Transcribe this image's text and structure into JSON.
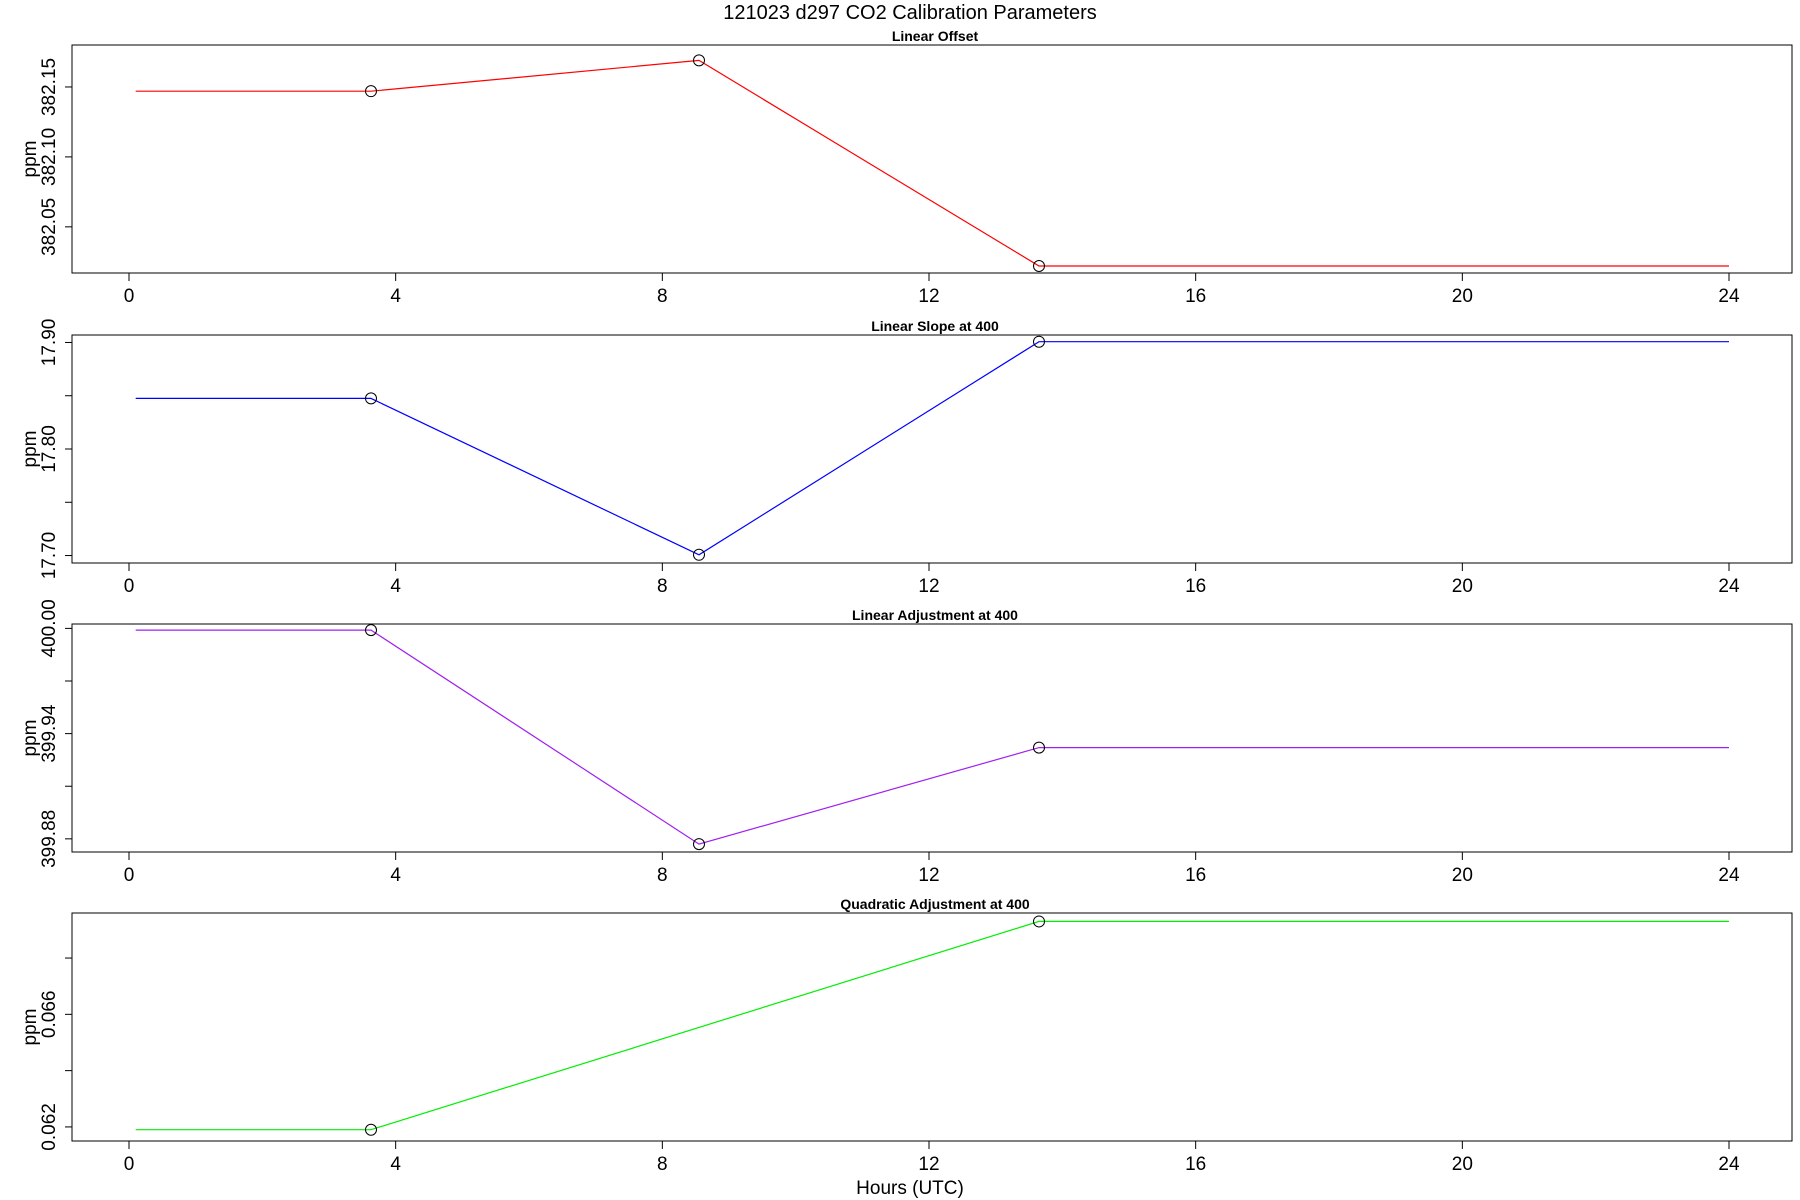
{
  "figure": {
    "title": "121023   d297   CO2 Calibration Parameters",
    "xlabel": "Hours (UTC)"
  },
  "chart_data": [
    {
      "type": "line",
      "title": "Linear Offset",
      "ylabel": "ppm",
      "color": "#ff0000",
      "xlim": [
        0,
        24
      ],
      "xticks": [
        0,
        4,
        8,
        12,
        16,
        20,
        24
      ],
      "xtick_labels": [
        "0",
        "4",
        "8",
        "12",
        "16",
        "20",
        "24"
      ],
      "ylim": [
        382.017,
        382.18
      ],
      "yticks": [
        382.05,
        382.1,
        382.15
      ],
      "ytick_labels": [
        "382.05",
        "382.10",
        "382.15"
      ],
      "yminor": [],
      "x": [
        0.1,
        3.63,
        8.55,
        13.65,
        24.0
      ],
      "y": [
        382.147,
        382.147,
        382.169,
        382.022,
        382.022
      ],
      "points": [
        3.63,
        8.55,
        13.65
      ]
    },
    {
      "type": "line",
      "title": "Linear Slope at 400",
      "ylabel": "ppm",
      "color": "#0000ff",
      "xlim": [
        0,
        24
      ],
      "xticks": [
        0,
        4,
        8,
        12,
        16,
        20,
        24
      ],
      "xtick_labels": [
        "0",
        "4",
        "8",
        "12",
        "16",
        "20",
        "24"
      ],
      "ylim": [
        17.693,
        17.907
      ],
      "yticks": [
        17.7,
        17.8,
        17.9
      ],
      "ytick_labels": [
        "17.70",
        "17.80",
        "17.90"
      ],
      "yminor": [
        17.75,
        17.85
      ],
      "x": [
        0.1,
        3.63,
        8.55,
        13.65,
        24.0
      ],
      "y": [
        17.8475,
        17.8475,
        17.7007,
        17.9007,
        17.9007
      ],
      "points": [
        3.63,
        8.55,
        13.65
      ]
    },
    {
      "type": "line",
      "title": "Linear Adjustment at 400",
      "ylabel": "ppm",
      "color": "#a020f0",
      "xlim": [
        0,
        24
      ],
      "xticks": [
        0,
        4,
        8,
        12,
        16,
        20,
        24
      ],
      "xtick_labels": [
        "0",
        "4",
        "8",
        "12",
        "16",
        "20",
        "24"
      ],
      "ylim": [
        399.8725,
        400.0025
      ],
      "yticks": [
        399.88,
        399.94,
        400.0
      ],
      "ytick_labels": [
        "399.88",
        "399.94",
        "400.00"
      ],
      "yminor": [
        399.91,
        399.97
      ],
      "x": [
        0.1,
        3.63,
        8.55,
        13.65,
        24.0
      ],
      "y": [
        399.999,
        399.999,
        399.877,
        399.932,
        399.932
      ],
      "points": [
        3.63,
        8.55,
        13.65
      ]
    },
    {
      "type": "line",
      "title": "Quadratic Adjustment at 400",
      "ylabel": "ppm",
      "color": "#00ee00",
      "xlim": [
        0,
        24
      ],
      "xticks": [
        0,
        4,
        8,
        12,
        16,
        20,
        24
      ],
      "xtick_labels": [
        "0",
        "4",
        "8",
        "12",
        "16",
        "20",
        "24"
      ],
      "ylim": [
        0.0615,
        0.0696
      ],
      "yticks": [
        0.062,
        0.066
      ],
      "ytick_labels": [
        "0.062",
        "0.066"
      ],
      "yminor": [
        0.064,
        0.068
      ],
      "x": [
        0.1,
        3.63,
        13.65,
        24.0
      ],
      "y": [
        0.0619,
        0.0619,
        0.0693,
        0.0693
      ],
      "points": [
        3.63,
        13.65
      ]
    }
  ]
}
